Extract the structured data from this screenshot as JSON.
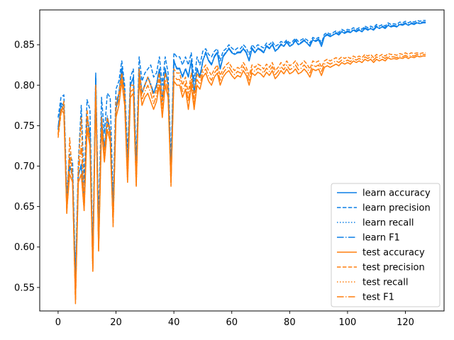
{
  "chart_data": {
    "type": "line",
    "title": "",
    "xlabel": "",
    "ylabel": "",
    "xlim": [
      -6.35,
      133.35
    ],
    "ylim": [
      0.521,
      0.893
    ],
    "xticks": [
      0,
      20,
      40,
      60,
      80,
      100,
      120
    ],
    "yticks": [
      0.55,
      0.6,
      0.65,
      0.7,
      0.75,
      0.8,
      0.85
    ],
    "grid": false,
    "legend_position": "lower-right",
    "colors": {
      "learn": "#1f77b4",
      "learn_bright": "#0a7fe6",
      "test": "#ff7f0e"
    },
    "x": [
      0,
      1,
      2,
      3,
      4,
      5,
      6,
      7,
      8,
      9,
      10,
      11,
      12,
      13,
      14,
      15,
      16,
      17,
      18,
      19,
      20,
      21,
      22,
      23,
      24,
      25,
      26,
      27,
      28,
      29,
      30,
      31,
      32,
      33,
      34,
      35,
      36,
      37,
      38,
      39,
      40,
      41,
      42,
      43,
      44,
      45,
      46,
      47,
      48,
      49,
      50,
      51,
      52,
      53,
      54,
      55,
      56,
      57,
      58,
      59,
      60,
      61,
      62,
      63,
      64,
      65,
      66,
      67,
      68,
      69,
      70,
      71,
      72,
      73,
      74,
      75,
      76,
      77,
      78,
      79,
      80,
      81,
      82,
      83,
      84,
      85,
      86,
      87,
      88,
      89,
      90,
      91,
      92,
      93,
      94,
      95,
      96,
      97,
      98,
      99,
      100,
      101,
      102,
      103,
      104,
      105,
      106,
      107,
      108,
      109,
      110,
      111,
      112,
      113,
      114,
      115,
      116,
      117,
      118,
      119,
      120,
      121,
      122,
      123,
      124,
      125,
      126,
      127
    ],
    "series": [
      {
        "name": "learn accuracy",
        "color": "#0a7fe6",
        "style": "solid",
        "values": [
          0.745,
          0.775,
          0.77,
          0.655,
          0.7,
          0.69,
          0.555,
          0.69,
          0.7,
          0.66,
          0.76,
          0.74,
          0.58,
          0.81,
          0.61,
          0.76,
          0.72,
          0.76,
          0.74,
          0.64,
          0.77,
          0.79,
          0.82,
          0.79,
          0.7,
          0.8,
          0.81,
          0.69,
          0.82,
          0.79,
          0.8,
          0.81,
          0.8,
          0.79,
          0.8,
          0.82,
          0.78,
          0.82,
          0.8,
          0.69,
          0.83,
          0.82,
          0.82,
          0.81,
          0.82,
          0.81,
          0.83,
          0.79,
          0.82,
          0.81,
          0.83,
          0.84,
          0.83,
          0.825,
          0.835,
          0.84,
          0.82,
          0.835,
          0.84,
          0.845,
          0.84,
          0.838,
          0.84,
          0.84,
          0.845,
          0.84,
          0.83,
          0.845,
          0.84,
          0.845,
          0.843,
          0.84,
          0.848,
          0.845,
          0.85,
          0.842,
          0.845,
          0.85,
          0.848,
          0.853,
          0.848,
          0.85,
          0.855,
          0.85,
          0.852,
          0.855,
          0.852,
          0.848,
          0.856,
          0.854,
          0.856,
          0.848,
          0.86,
          0.862,
          0.86,
          0.862,
          0.864,
          0.862,
          0.866,
          0.864,
          0.866,
          0.865,
          0.868,
          0.866,
          0.868,
          0.866,
          0.87,
          0.868,
          0.87,
          0.868,
          0.872,
          0.87,
          0.872,
          0.87,
          0.874,
          0.872,
          0.873,
          0.872,
          0.875,
          0.874,
          0.876,
          0.874,
          0.876,
          0.875,
          0.877,
          0.876,
          0.877,
          0.877
        ]
      },
      {
        "name": "learn precision",
        "color": "#0a7fe6",
        "style": "dashed",
        "values": [
          0.76,
          0.785,
          0.788,
          0.665,
          0.715,
          0.705,
          0.565,
          0.705,
          0.775,
          0.68,
          0.782,
          0.77,
          0.595,
          0.815,
          0.63,
          0.785,
          0.74,
          0.79,
          0.785,
          0.655,
          0.795,
          0.805,
          0.83,
          0.8,
          0.715,
          0.81,
          0.82,
          0.705,
          0.835,
          0.805,
          0.815,
          0.82,
          0.825,
          0.81,
          0.815,
          0.835,
          0.8,
          0.835,
          0.815,
          0.705,
          0.84,
          0.835,
          0.835,
          0.825,
          0.835,
          0.825,
          0.84,
          0.805,
          0.835,
          0.825,
          0.842,
          0.845,
          0.838,
          0.835,
          0.842,
          0.845,
          0.83,
          0.842,
          0.845,
          0.85,
          0.846,
          0.843,
          0.846,
          0.845,
          0.85,
          0.846,
          0.838,
          0.85,
          0.846,
          0.85,
          0.848,
          0.846,
          0.852,
          0.85,
          0.854,
          0.848,
          0.85,
          0.854,
          0.852,
          0.856,
          0.852,
          0.854,
          0.858,
          0.854,
          0.856,
          0.858,
          0.856,
          0.852,
          0.859,
          0.857,
          0.859,
          0.852,
          0.863,
          0.865,
          0.863,
          0.865,
          0.867,
          0.865,
          0.869,
          0.867,
          0.869,
          0.868,
          0.871,
          0.869,
          0.871,
          0.869,
          0.873,
          0.871,
          0.873,
          0.871,
          0.875,
          0.873,
          0.875,
          0.873,
          0.877,
          0.875,
          0.876,
          0.875,
          0.878,
          0.877,
          0.879,
          0.877,
          0.879,
          0.878,
          0.88,
          0.879,
          0.88,
          0.88
        ]
      },
      {
        "name": "learn recall",
        "color": "#0a7fe6",
        "style": "dotted",
        "values": [
          0.745,
          0.775,
          0.77,
          0.655,
          0.7,
          0.69,
          0.555,
          0.69,
          0.7,
          0.66,
          0.76,
          0.74,
          0.58,
          0.81,
          0.61,
          0.76,
          0.72,
          0.76,
          0.74,
          0.64,
          0.77,
          0.79,
          0.82,
          0.79,
          0.7,
          0.8,
          0.81,
          0.69,
          0.82,
          0.79,
          0.8,
          0.81,
          0.8,
          0.79,
          0.8,
          0.82,
          0.78,
          0.82,
          0.8,
          0.69,
          0.83,
          0.82,
          0.82,
          0.81,
          0.82,
          0.81,
          0.83,
          0.79,
          0.82,
          0.81,
          0.83,
          0.84,
          0.83,
          0.825,
          0.835,
          0.84,
          0.82,
          0.835,
          0.84,
          0.845,
          0.84,
          0.838,
          0.84,
          0.84,
          0.845,
          0.84,
          0.83,
          0.845,
          0.84,
          0.845,
          0.843,
          0.84,
          0.848,
          0.845,
          0.85,
          0.842,
          0.845,
          0.85,
          0.848,
          0.853,
          0.848,
          0.85,
          0.855,
          0.85,
          0.852,
          0.855,
          0.852,
          0.848,
          0.856,
          0.854,
          0.856,
          0.848,
          0.86,
          0.862,
          0.86,
          0.862,
          0.864,
          0.862,
          0.866,
          0.864,
          0.866,
          0.865,
          0.868,
          0.866,
          0.868,
          0.866,
          0.87,
          0.868,
          0.87,
          0.868,
          0.872,
          0.87,
          0.872,
          0.87,
          0.874,
          0.872,
          0.873,
          0.872,
          0.875,
          0.874,
          0.876,
          0.874,
          0.876,
          0.875,
          0.877,
          0.876,
          0.877,
          0.877
        ]
      },
      {
        "name": "learn F1",
        "color": "#0a7fe6",
        "style": "dashdot",
        "values": [
          0.748,
          0.778,
          0.774,
          0.652,
          0.698,
          0.688,
          0.55,
          0.688,
          0.702,
          0.658,
          0.762,
          0.742,
          0.575,
          0.808,
          0.605,
          0.762,
          0.722,
          0.762,
          0.744,
          0.636,
          0.772,
          0.79,
          0.821,
          0.79,
          0.698,
          0.801,
          0.81,
          0.688,
          0.821,
          0.791,
          0.801,
          0.81,
          0.802,
          0.79,
          0.801,
          0.821,
          0.782,
          0.821,
          0.801,
          0.688,
          0.831,
          0.821,
          0.821,
          0.811,
          0.821,
          0.811,
          0.831,
          0.791,
          0.821,
          0.811,
          0.831,
          0.841,
          0.831,
          0.826,
          0.836,
          0.841,
          0.821,
          0.836,
          0.841,
          0.846,
          0.841,
          0.839,
          0.841,
          0.841,
          0.846,
          0.841,
          0.831,
          0.846,
          0.841,
          0.846,
          0.844,
          0.841,
          0.849,
          0.846,
          0.851,
          0.843,
          0.846,
          0.851,
          0.849,
          0.854,
          0.849,
          0.851,
          0.856,
          0.851,
          0.853,
          0.856,
          0.853,
          0.849,
          0.857,
          0.855,
          0.857,
          0.849,
          0.861,
          0.863,
          0.861,
          0.863,
          0.865,
          0.863,
          0.867,
          0.865,
          0.867,
          0.866,
          0.869,
          0.867,
          0.869,
          0.867,
          0.871,
          0.869,
          0.871,
          0.869,
          0.873,
          0.871,
          0.873,
          0.871,
          0.875,
          0.873,
          0.874,
          0.873,
          0.876,
          0.875,
          0.877,
          0.875,
          0.877,
          0.876,
          0.878,
          0.877,
          0.878,
          0.878
        ]
      },
      {
        "name": "test accuracy",
        "color": "#ff7f0e",
        "style": "solid",
        "values": [
          0.74,
          0.77,
          0.765,
          0.645,
          0.69,
          0.68,
          0.535,
          0.68,
          0.69,
          0.645,
          0.745,
          0.725,
          0.57,
          0.795,
          0.595,
          0.745,
          0.705,
          0.745,
          0.73,
          0.63,
          0.76,
          0.775,
          0.805,
          0.775,
          0.68,
          0.785,
          0.79,
          0.675,
          0.805,
          0.775,
          0.785,
          0.79,
          0.78,
          0.77,
          0.78,
          0.8,
          0.76,
          0.8,
          0.785,
          0.68,
          0.805,
          0.8,
          0.8,
          0.785,
          0.795,
          0.77,
          0.8,
          0.77,
          0.8,
          0.795,
          0.81,
          0.815,
          0.805,
          0.8,
          0.81,
          0.815,
          0.8,
          0.81,
          0.815,
          0.818,
          0.812,
          0.808,
          0.812,
          0.81,
          0.818,
          0.812,
          0.8,
          0.815,
          0.812,
          0.816,
          0.814,
          0.81,
          0.816,
          0.812,
          0.818,
          0.808,
          0.812,
          0.818,
          0.814,
          0.82,
          0.814,
          0.816,
          0.82,
          0.814,
          0.816,
          0.82,
          0.816,
          0.81,
          0.82,
          0.818,
          0.82,
          0.812,
          0.822,
          0.824,
          0.822,
          0.824,
          0.826,
          0.824,
          0.828,
          0.826,
          0.828,
          0.826,
          0.83,
          0.828,
          0.83,
          0.828,
          0.832,
          0.83,
          0.832,
          0.828,
          0.832,
          0.83,
          0.832,
          0.83,
          0.834,
          0.832,
          0.833,
          0.832,
          0.834,
          0.833,
          0.835,
          0.833,
          0.835,
          0.834,
          0.836,
          0.835,
          0.836,
          0.836
        ]
      },
      {
        "name": "test precision",
        "color": "#ff7f0e",
        "style": "dashed",
        "values": [
          0.735,
          0.765,
          0.78,
          0.64,
          0.735,
          0.685,
          0.53,
          0.7,
          0.76,
          0.65,
          0.77,
          0.73,
          0.575,
          0.8,
          0.6,
          0.76,
          0.715,
          0.76,
          0.745,
          0.625,
          0.78,
          0.79,
          0.815,
          0.79,
          0.69,
          0.8,
          0.8,
          0.68,
          0.82,
          0.79,
          0.8,
          0.81,
          0.8,
          0.785,
          0.795,
          0.815,
          0.78,
          0.815,
          0.8,
          0.675,
          0.82,
          0.815,
          0.815,
          0.8,
          0.81,
          0.79,
          0.815,
          0.785,
          0.815,
          0.808,
          0.82,
          0.825,
          0.818,
          0.812,
          0.82,
          0.825,
          0.812,
          0.82,
          0.825,
          0.828,
          0.822,
          0.818,
          0.822,
          0.82,
          0.828,
          0.822,
          0.812,
          0.825,
          0.822,
          0.826,
          0.824,
          0.82,
          0.826,
          0.822,
          0.828,
          0.818,
          0.822,
          0.828,
          0.824,
          0.83,
          0.824,
          0.826,
          0.83,
          0.824,
          0.826,
          0.83,
          0.826,
          0.82,
          0.83,
          0.828,
          0.83,
          0.822,
          0.83,
          0.832,
          0.83,
          0.832,
          0.834,
          0.832,
          0.835,
          0.833,
          0.835,
          0.833,
          0.836,
          0.834,
          0.836,
          0.834,
          0.838,
          0.836,
          0.838,
          0.834,
          0.838,
          0.836,
          0.838,
          0.836,
          0.839,
          0.838,
          0.838,
          0.837,
          0.839,
          0.838,
          0.84,
          0.838,
          0.84,
          0.839,
          0.84,
          0.839,
          0.84,
          0.84
        ]
      },
      {
        "name": "test recall",
        "color": "#ff7f0e",
        "style": "dotted",
        "values": [
          0.74,
          0.77,
          0.765,
          0.645,
          0.69,
          0.68,
          0.535,
          0.68,
          0.69,
          0.645,
          0.745,
          0.725,
          0.57,
          0.795,
          0.595,
          0.745,
          0.705,
          0.745,
          0.73,
          0.63,
          0.76,
          0.775,
          0.805,
          0.775,
          0.68,
          0.785,
          0.79,
          0.675,
          0.805,
          0.775,
          0.785,
          0.79,
          0.78,
          0.77,
          0.78,
          0.8,
          0.76,
          0.8,
          0.785,
          0.68,
          0.805,
          0.8,
          0.8,
          0.785,
          0.795,
          0.77,
          0.8,
          0.77,
          0.8,
          0.795,
          0.81,
          0.815,
          0.805,
          0.8,
          0.81,
          0.815,
          0.8,
          0.81,
          0.815,
          0.818,
          0.812,
          0.808,
          0.812,
          0.81,
          0.818,
          0.812,
          0.8,
          0.815,
          0.812,
          0.816,
          0.814,
          0.81,
          0.816,
          0.812,
          0.818,
          0.808,
          0.812,
          0.818,
          0.814,
          0.82,
          0.814,
          0.816,
          0.82,
          0.814,
          0.816,
          0.82,
          0.816,
          0.81,
          0.82,
          0.818,
          0.82,
          0.812,
          0.822,
          0.824,
          0.822,
          0.824,
          0.826,
          0.824,
          0.828,
          0.826,
          0.828,
          0.826,
          0.83,
          0.828,
          0.83,
          0.828,
          0.832,
          0.83,
          0.832,
          0.828,
          0.832,
          0.83,
          0.832,
          0.83,
          0.834,
          0.832,
          0.833,
          0.832,
          0.834,
          0.833,
          0.835,
          0.833,
          0.835,
          0.834,
          0.836,
          0.835,
          0.836,
          0.836
        ]
      },
      {
        "name": "test F1",
        "color": "#ff7f0e",
        "style": "dashdot",
        "values": [
          0.738,
          0.768,
          0.772,
          0.642,
          0.712,
          0.682,
          0.532,
          0.69,
          0.725,
          0.647,
          0.757,
          0.727,
          0.572,
          0.797,
          0.597,
          0.752,
          0.71,
          0.752,
          0.737,
          0.627,
          0.77,
          0.782,
          0.81,
          0.782,
          0.685,
          0.792,
          0.795,
          0.677,
          0.812,
          0.782,
          0.792,
          0.8,
          0.79,
          0.777,
          0.787,
          0.807,
          0.77,
          0.807,
          0.792,
          0.677,
          0.812,
          0.807,
          0.807,
          0.792,
          0.802,
          0.78,
          0.807,
          0.777,
          0.807,
          0.801,
          0.815,
          0.82,
          0.811,
          0.806,
          0.815,
          0.82,
          0.806,
          0.815,
          0.82,
          0.823,
          0.817,
          0.813,
          0.817,
          0.815,
          0.823,
          0.817,
          0.806,
          0.82,
          0.817,
          0.821,
          0.819,
          0.815,
          0.821,
          0.817,
          0.823,
          0.813,
          0.817,
          0.823,
          0.819,
          0.825,
          0.819,
          0.821,
          0.825,
          0.819,
          0.821,
          0.825,
          0.821,
          0.815,
          0.825,
          0.823,
          0.825,
          0.817,
          0.826,
          0.828,
          0.826,
          0.828,
          0.83,
          0.828,
          0.831,
          0.829,
          0.831,
          0.829,
          0.833,
          0.831,
          0.833,
          0.831,
          0.835,
          0.833,
          0.835,
          0.831,
          0.835,
          0.833,
          0.835,
          0.833,
          0.836,
          0.835,
          0.835,
          0.834,
          0.836,
          0.835,
          0.837,
          0.835,
          0.837,
          0.836,
          0.838,
          0.837,
          0.838,
          0.838
        ]
      }
    ]
  }
}
